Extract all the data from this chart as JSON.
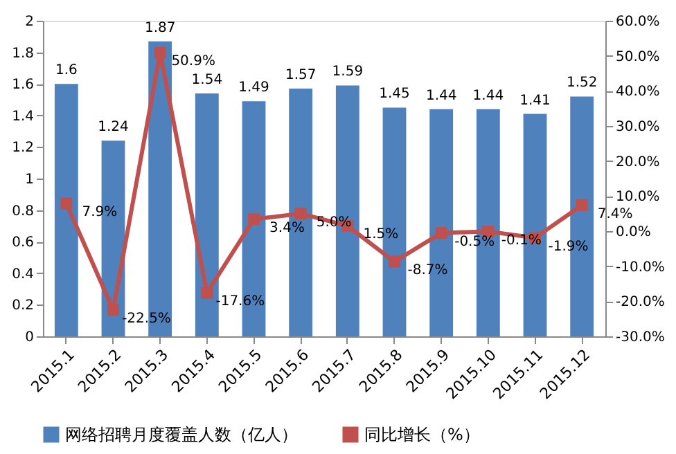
{
  "chart_data": {
    "type": "bar",
    "categories": [
      "2015.1",
      "2015.2",
      "2015.3",
      "2015.4",
      "2015.5",
      "2015.6",
      "2015.7",
      "2015.8",
      "2015.9",
      "2015.10",
      "2015.11",
      "2015.12"
    ],
    "series": [
      {
        "name": "网络招聘月度覆盖人数（亿人）",
        "color": "#4f81bd",
        "values": [
          1.6,
          1.24,
          1.87,
          1.54,
          1.49,
          1.57,
          1.59,
          1.45,
          1.44,
          1.44,
          1.41,
          1.52
        ],
        "value_labels": [
          "1.6",
          "1.24",
          "1.87",
          "1.54",
          "1.49",
          "1.57",
          "1.59",
          "1.45",
          "1.44",
          "1.44",
          "1.41",
          "1.52"
        ]
      },
      {
        "name": "同比增长（%）",
        "type": "line",
        "axis": "y2",
        "color": "#c0504d",
        "marker": "square",
        "values": [
          7.9,
          -22.5,
          50.9,
          -17.6,
          3.4,
          5.0,
          1.5,
          -8.7,
          -0.5,
          -0.1,
          -1.9,
          7.4
        ],
        "value_labels": [
          "7.9%",
          "-22.5%",
          "50.9%",
          "-17.6%",
          "3.4%",
          "5.0%",
          "1.5%",
          "-8.7%",
          "-0.5%",
          "-0.1%",
          "-1.9%",
          "7.4%"
        ]
      }
    ],
    "ylim": [
      0,
      2
    ],
    "yticks": [
      0,
      0.2,
      0.4,
      0.6,
      0.8,
      1,
      1.2,
      1.4,
      1.6,
      1.8,
      2
    ],
    "y2lim": [
      -30,
      60
    ],
    "y2ticks": [
      {
        "value": -30,
        "label": "-30.0%"
      },
      {
        "value": -20,
        "label": "-20.0%"
      },
      {
        "value": -10,
        "label": "-10.0%"
      },
      {
        "value": 0,
        "label": "0.0%"
      },
      {
        "value": 10,
        "label": "10.0%"
      },
      {
        "value": 20,
        "label": "20.0%"
      },
      {
        "value": 30,
        "label": "30.0%"
      },
      {
        "value": 40,
        "label": "40.0%"
      },
      {
        "value": 50,
        "label": "50.0%"
      },
      {
        "value": 60,
        "label": "60.0%"
      }
    ],
    "grid": false,
    "legend": "bottom"
  }
}
